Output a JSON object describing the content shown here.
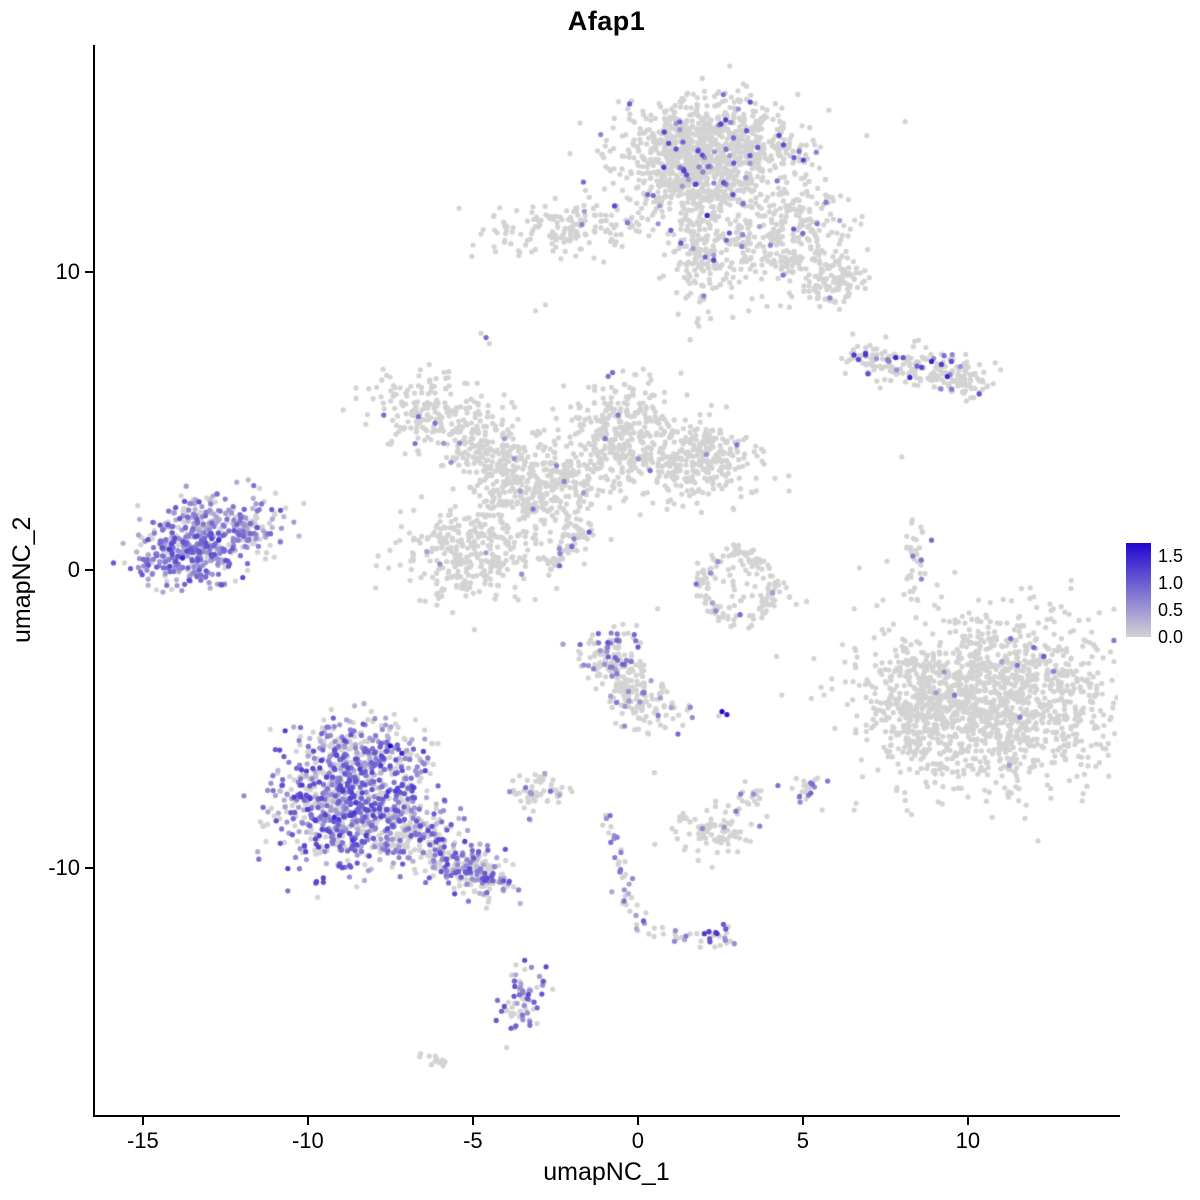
{
  "chart_data": {
    "type": "scatter",
    "title": "Afap1",
    "xlabel": "umapNC_1",
    "ylabel": "umapNC_2",
    "xlim": [
      -16.45,
      14.55
    ],
    "ylim": [
      -18.29,
      17.62
    ],
    "x_ticks": [
      "-15",
      "-10",
      "-5",
      "0",
      "5",
      "10"
    ],
    "x_tick_values": [
      -15,
      -10,
      -5,
      0,
      5,
      10
    ],
    "y_ticks": [
      "10",
      "0",
      "-10"
    ],
    "y_tick_values": [
      10,
      0,
      -10
    ],
    "grid": false,
    "background": "#ffffff",
    "axis_color": "#000000",
    "point_radius": 2.6,
    "seed": 42,
    "legend": {
      "position": "right",
      "labels": [
        "1.5",
        "1.0",
        "0.5",
        "0.0"
      ],
      "label_values": [
        1.5,
        1.0,
        0.5,
        0.0
      ],
      "vmin": 0,
      "vmax": 1.75,
      "color_low": "#d3d3d3",
      "color_high": "#2106d0"
    },
    "clusters": [
      {
        "name": "top-main",
        "n": 850,
        "cx": 2.1,
        "cy": 14.2,
        "sx": 1.4,
        "sy": 0.8,
        "frac": 0.05,
        "vmin": 0.4,
        "vmax": 1.3
      },
      {
        "name": "top-main-lower",
        "n": 250,
        "cx": 1.6,
        "cy": 12.9,
        "sx": 1.0,
        "sy": 0.6,
        "frac": 0.05,
        "vmin": 0.4,
        "vmax": 1.2
      },
      {
        "name": "top-arm",
        "n": 200,
        "cx": 1.9,
        "cy": 11.0,
        "sx": 0.45,
        "sy": 1.1,
        "frac": 0.05,
        "vmin": 0.4,
        "vmax": 1.2
      },
      {
        "name": "top-right-lobe",
        "n": 330,
        "cx": 4.4,
        "cy": 11.2,
        "sx": 0.9,
        "sy": 0.95,
        "frac": 0.03,
        "vmin": 0.4,
        "vmax": 1.1
      },
      {
        "name": "top-right-small",
        "n": 90,
        "cx": 5.9,
        "cy": 9.7,
        "sx": 0.5,
        "sy": 0.45,
        "frac": 0.04,
        "vmin": 0.4,
        "vmax": 1.0
      },
      {
        "name": "top-left-small",
        "n": 150,
        "cx": -2.3,
        "cy": 11.5,
        "sx": 1.15,
        "sy": 0.5,
        "frac": 0.01,
        "vmin": 0.4,
        "vmax": 0.9
      },
      {
        "name": "top-bridge",
        "type": "line",
        "n": 20,
        "x1": -1.1,
        "y1": 11.3,
        "x2": 0.6,
        "y2": 11.9,
        "w": 0.25,
        "frac": 0.05,
        "vmin": 0.4,
        "vmax": 0.9
      },
      {
        "name": "right-streak",
        "type": "line",
        "n": 170,
        "x1": 6.6,
        "y1": 7.2,
        "x2": 9.7,
        "y2": 6.6,
        "w": 0.3,
        "frac": 0.12,
        "vmin": 0.5,
        "vmax": 1.5
      },
      {
        "name": "right-streak-end",
        "n": 60,
        "cx": 10.0,
        "cy": 6.4,
        "sx": 0.5,
        "sy": 0.35,
        "frac": 0.05,
        "vmin": 0.5,
        "vmax": 1.2
      },
      {
        "name": "right-vert-streak",
        "n": 35,
        "cx": 8.35,
        "cy": 0.35,
        "sx": 0.18,
        "sy": 0.75,
        "frac": 0.05,
        "vmin": 0.6,
        "vmax": 1.0
      },
      {
        "name": "midleft-blob",
        "n": 190,
        "cx": -6.4,
        "cy": 5.3,
        "sx": 1.0,
        "sy": 0.6,
        "frac": 0.02,
        "vmin": 0.5,
        "vmax": 1.0
      },
      {
        "name": "midleft-blob2",
        "n": 130,
        "cx": -4.7,
        "cy": 4.0,
        "sx": 0.6,
        "sy": 0.55,
        "frac": 0.015,
        "vmin": 0.4,
        "vmax": 0.9
      },
      {
        "name": "central-blob",
        "n": 400,
        "cx": -3.0,
        "cy": 2.8,
        "sx": 1.05,
        "sy": 1.0,
        "frac": 0.008,
        "vmin": 0.4,
        "vmax": 0.8
      },
      {
        "name": "central-lower-blob",
        "n": 300,
        "cx": -5.1,
        "cy": 0.6,
        "sx": 0.95,
        "sy": 0.85,
        "frac": 0.01,
        "vmin": 0.4,
        "vmax": 0.8
      },
      {
        "name": "teardrop",
        "n": 300,
        "cx": -0.5,
        "cy": 4.6,
        "sx": 0.75,
        "sy": 0.9,
        "frac": 0.015,
        "vmin": 0.5,
        "vmax": 1.0
      },
      {
        "name": "mid-right-blob",
        "n": 300,
        "cx": 1.8,
        "cy": 3.7,
        "sx": 0.95,
        "sy": 0.7,
        "frac": 0.012,
        "vmin": 0.4,
        "vmax": 0.9
      },
      {
        "name": "diag-streak",
        "type": "line",
        "n": 55,
        "x1": -2.7,
        "y1": 0.1,
        "x2": -1.5,
        "y2": 1.5,
        "w": 0.12,
        "frac": 0.15,
        "vmin": 0.5,
        "vmax": 1.1
      },
      {
        "name": "left-core",
        "n": 280,
        "cx": -13.6,
        "cy": 0.5,
        "sx": 0.8,
        "sy": 0.5,
        "frac": 0.8,
        "vmin": 0.25,
        "vmax": 1.2
      },
      {
        "name": "left-upper",
        "n": 200,
        "cx": -12.9,
        "cy": 1.6,
        "sx": 0.9,
        "sy": 0.5,
        "frac": 0.65,
        "vmin": 0.2,
        "vmax": 1.1
      },
      {
        "name": "left-fringe",
        "n": 70,
        "cx": -11.7,
        "cy": 1.3,
        "sx": 0.5,
        "sy": 0.5,
        "frac": 0.5,
        "vmin": 0.2,
        "vmax": 1.0
      },
      {
        "name": "ring",
        "type": "ring",
        "n": 140,
        "cx": 3.0,
        "cy": -0.55,
        "rx": 1.1,
        "ry": 1.05,
        "w": 0.18,
        "frac": 0.02,
        "vmin": 0.4,
        "vmax": 0.9
      },
      {
        "name": "ring-inner",
        "n": 20,
        "cx": 3.0,
        "cy": -0.55,
        "sx": 0.5,
        "sy": 0.45,
        "frac": 0.02,
        "vmin": 0.4,
        "vmax": 0.9
      },
      {
        "name": "right-main",
        "n": 1400,
        "cx": 10.7,
        "cy": -4.4,
        "sx": 1.9,
        "sy": 1.4,
        "frac": 0.003,
        "vmin": 0.4,
        "vmax": 0.8
      },
      {
        "name": "right-main-left-lobe",
        "n": 160,
        "cx": 8.4,
        "cy": -4.8,
        "sx": 0.55,
        "sy": 1.0,
        "frac": 0.01,
        "vmin": 0.4,
        "vmax": 0.8
      },
      {
        "name": "lowerleft-top",
        "n": 220,
        "cx": -8.4,
        "cy": -6.0,
        "sx": 0.95,
        "sy": 0.55,
        "frac": 0.5,
        "vmin": 0.2,
        "vmax": 1.2
      },
      {
        "name": "lowerleft-core",
        "n": 720,
        "cx": -8.9,
        "cy": -7.9,
        "sx": 1.1,
        "sy": 1.0,
        "frac": 0.6,
        "vmin": 0.2,
        "vmax": 1.3
      },
      {
        "name": "lowerleft-right",
        "n": 200,
        "cx": -7.0,
        "cy": -8.6,
        "sx": 0.8,
        "sy": 0.7,
        "frac": 0.55,
        "vmin": 0.2,
        "vmax": 1.2
      },
      {
        "name": "lowerleft-tail",
        "type": "line",
        "n": 220,
        "x1": -6.0,
        "y1": -9.6,
        "x2": -4.2,
        "y2": -10.5,
        "w": 0.4,
        "frac": 0.5,
        "vmin": 0.2,
        "vmax": 1.2
      },
      {
        "name": "mid-low-1",
        "n": 80,
        "cx": -0.9,
        "cy": -2.7,
        "sx": 0.45,
        "sy": 0.4,
        "frac": 0.35,
        "vmin": 0.4,
        "vmax": 1.1
      },
      {
        "name": "mid-low-2",
        "type": "line",
        "n": 170,
        "x1": -0.8,
        "y1": -3.2,
        "x2": 0.7,
        "y2": -4.9,
        "w": 0.45,
        "frac": 0.12,
        "vmin": 0.4,
        "vmax": 1.0
      },
      {
        "name": "mid-low-3",
        "n": 55,
        "cx": -2.9,
        "cy": -7.4,
        "sx": 0.5,
        "sy": 0.33,
        "frac": 0.15,
        "vmin": 0.4,
        "vmax": 0.9
      },
      {
        "name": "mid-low-4",
        "n": 22,
        "cx": 5.1,
        "cy": -7.25,
        "sx": 0.28,
        "sy": 0.28,
        "frac": 0.25,
        "vmin": 0.4,
        "vmax": 1.0
      },
      {
        "name": "mid-low-5",
        "n": 16,
        "cx": 3.5,
        "cy": -7.6,
        "sx": 0.3,
        "sy": 0.22,
        "frac": 0.1,
        "vmin": 0.4,
        "vmax": 0.8
      },
      {
        "name": "mid-low-6",
        "n": 90,
        "cx": 2.3,
        "cy": -8.8,
        "sx": 0.55,
        "sy": 0.45,
        "frac": 0.04,
        "vmin": 0.4,
        "vmax": 0.8
      },
      {
        "name": "trail-upper",
        "type": "line",
        "n": 26,
        "x1": -0.9,
        "y1": -8.3,
        "x2": -0.3,
        "y2": -10.9,
        "w": 0.15,
        "frac": 0.55,
        "vmin": 0.3,
        "vmax": 1.0
      },
      {
        "name": "trail-lower",
        "type": "line",
        "n": 14,
        "x1": -0.3,
        "y1": -10.9,
        "x2": 0.1,
        "y2": -12.1,
        "w": 0.12,
        "frac": 0.55,
        "vmin": 0.3,
        "vmax": 1.0
      },
      {
        "name": "trail-branch",
        "type": "line",
        "n": 16,
        "x1": 0.3,
        "y1": -12.15,
        "x2": 2.2,
        "y2": -12.4,
        "w": 0.12,
        "frac": 0.35,
        "vmin": 0.3,
        "vmax": 0.9
      },
      {
        "name": "branch-end",
        "n": 20,
        "cx": 2.4,
        "cy": -12.3,
        "sx": 0.28,
        "sy": 0.22,
        "frac": 0.6,
        "vmin": 0.4,
        "vmax": 1.4
      },
      {
        "name": "bottom-blob",
        "n": 70,
        "cx": -3.55,
        "cy": -14.4,
        "sx": 0.33,
        "sy": 0.6,
        "frac": 0.55,
        "vmin": 0.3,
        "vmax": 1.2
      },
      {
        "name": "bottom-tiny",
        "n": 12,
        "cx": -6.1,
        "cy": -16.4,
        "sx": 0.3,
        "sy": 0.13,
        "frac": 0,
        "vmin": 0,
        "vmax": 0
      }
    ],
    "singles": [
      [
        -4.6,
        7.8,
        0.9
      ],
      [
        -4.75,
        7.95,
        0
      ],
      [
        -4.5,
        7.6,
        0
      ],
      [
        -2.8,
        8.9,
        0
      ],
      [
        -3.1,
        8.7,
        0
      ],
      [
        -0.9,
        6.5,
        0.85
      ],
      [
        -0.6,
        5.2,
        0.8
      ],
      [
        -7.7,
        5.2,
        0.9
      ],
      [
        -6.0,
        0.2,
        0.6
      ],
      [
        8.0,
        3.8,
        0
      ],
      [
        8.9,
        1.0,
        0.9
      ],
      [
        4.2,
        -2.9,
        0
      ],
      [
        6.2,
        -2.5,
        0
      ],
      [
        6.6,
        -2.7,
        0
      ],
      [
        0.6,
        -1.3,
        0
      ],
      [
        4.6,
        -0.9,
        0
      ],
      [
        4.8,
        -1.15,
        0
      ],
      [
        0.5,
        -6.8,
        0
      ],
      [
        3.1,
        -1.5,
        0.9
      ],
      [
        2.2,
        -0.1,
        0.6
      ],
      [
        3.0,
        4.2,
        0.8
      ],
      [
        12.0,
        -2.6,
        0.9
      ],
      [
        11.5,
        -3.2,
        0.8
      ],
      [
        12.6,
        -3.4,
        0.7
      ],
      [
        11.3,
        -2.3,
        0.85
      ],
      [
        12.3,
        -2.9,
        1.0
      ],
      [
        9.6,
        -4.2,
        0.8
      ],
      [
        -13.8,
        0.4,
        1.5
      ],
      [
        -12.7,
        1.0,
        1.4
      ],
      [
        -14.2,
        0.7,
        1.3
      ],
      [
        -11.0,
        1.9,
        0
      ],
      [
        -10.8,
        1.4,
        0.5
      ],
      [
        -7.5,
        -5.9,
        1.75
      ],
      [
        -7.15,
        -6.15,
        1.5
      ],
      [
        -9.2,
        -8.3,
        1.45
      ],
      [
        2.55,
        -4.75,
        1.75
      ],
      [
        2.7,
        -4.85,
        1.6
      ],
      [
        2.45,
        -4.9,
        0
      ],
      [
        1.5,
        -4.7,
        0
      ],
      [
        1.65,
        -4.95,
        0.6
      ],
      [
        4.9,
        -7.6,
        0.85
      ],
      [
        -3.4,
        -7.3,
        0.8
      ],
      [
        2.4,
        -12.2,
        1.4
      ],
      [
        8.9,
        7.0,
        1.5
      ],
      [
        9.2,
        6.9,
        1.3
      ],
      [
        9.5,
        7.0,
        1.1
      ],
      [
        8.6,
        6.8,
        1.2
      ],
      [
        2.1,
        11.9,
        1.5
      ],
      [
        0.8,
        14.7,
        1.2
      ],
      [
        1.4,
        13.4,
        1.3
      ],
      [
        2.6,
        13.0,
        1.1
      ],
      [
        0.3,
        12.6,
        0.9
      ],
      [
        2.9,
        14.5,
        0.9
      ],
      [
        1.0,
        11.4,
        1.0
      ],
      [
        2.3,
        10.4,
        1.2
      ],
      [
        5.0,
        11.3,
        0.9
      ],
      [
        4.4,
        9.9,
        0.8
      ],
      [
        2.0,
        9.2,
        0.7
      ]
    ]
  }
}
